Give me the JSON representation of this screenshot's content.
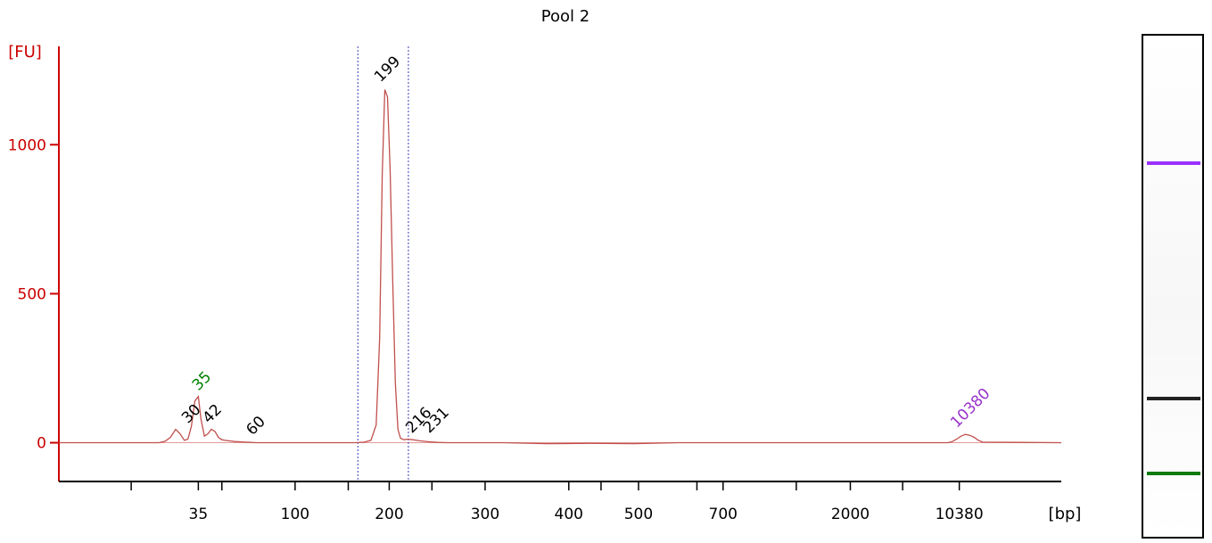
{
  "chart_data": {
    "type": "line",
    "title": "Pool 2",
    "ylabel": "[FU]",
    "xlabel": "[bp]",
    "ylim": [
      -130,
      1330
    ],
    "grid": false,
    "yticks": [
      0,
      500,
      1000
    ],
    "xticks": [
      "35",
      "100",
      "200",
      "300",
      "400",
      "500",
      "700",
      "2000",
      "10380"
    ],
    "x_tick_index": [
      1.0,
      2.11,
      3.19,
      4.29,
      5.25,
      6.05,
      7.02,
      8.48,
      9.73
    ],
    "x_minor_ticks": [
      0.23,
      1.27,
      2.72,
      3.68,
      5.62,
      6.72,
      7.86,
      9.08
    ],
    "xlim": [
      -0.6,
      10.9
    ],
    "series": [
      {
        "name": "",
        "color": "#c0504d",
        "x": [
          -0.6,
          0.55,
          0.62,
          0.68,
          0.74,
          0.79,
          0.84,
          0.88,
          0.92,
          0.96,
          1.0,
          1.03,
          1.07,
          1.11,
          1.15,
          1.19,
          1.23,
          1.27,
          1.31,
          1.36,
          1.42,
          1.48,
          1.54,
          1.6,
          1.66,
          1.72,
          2.4,
          2.8,
          2.9,
          2.98,
          3.04,
          3.08,
          3.11,
          3.14,
          3.17,
          3.2,
          3.23,
          3.26,
          3.29,
          3.32,
          3.36,
          3.4,
          3.46,
          3.55,
          3.65,
          3.75,
          3.85,
          4.05,
          4.5,
          5.0,
          5.5,
          6.0,
          6.5,
          8.5,
          9.55,
          9.6,
          9.65,
          9.7,
          9.75,
          9.8,
          9.85,
          9.9,
          9.95,
          10.0,
          10.9
        ],
        "values": [
          0,
          0,
          5,
          18,
          45,
          30,
          8,
          12,
          55,
          140,
          155,
          80,
          22,
          30,
          45,
          38,
          18,
          10,
          8,
          6,
          4,
          3,
          2,
          1,
          0,
          0,
          0,
          0,
          2,
          8,
          60,
          350,
          900,
          1185,
          1160,
          920,
          550,
          200,
          45,
          15,
          10,
          12,
          10,
          6,
          3,
          1,
          0,
          0,
          0,
          -3,
          -2,
          -3,
          0,
          0,
          0,
          0,
          4,
          12,
          22,
          28,
          25,
          18,
          8,
          2,
          0
        ]
      }
    ],
    "peak_labels": [
      {
        "text": "30",
        "x": 0.88,
        "y": 45,
        "color": "#000000"
      },
      {
        "text": "35",
        "x": 1.0,
        "y": 155,
        "color": "#008000"
      },
      {
        "text": "42",
        "x": 1.12,
        "y": 45,
        "color": "#000000"
      },
      {
        "text": "60",
        "x": 1.62,
        "y": 5,
        "color": "#000000"
      },
      {
        "text": "199",
        "x": 3.09,
        "y": 1190,
        "color": "#000000"
      },
      {
        "text": "216",
        "x": 3.45,
        "y": 12,
        "color": "#000000"
      },
      {
        "text": "231",
        "x": 3.65,
        "y": 12,
        "color": "#000000"
      },
      {
        "text": "10380",
        "x": 9.7,
        "y": 30,
        "color": "#9932cc"
      }
    ],
    "region_lines": [
      2.83,
      3.41
    ],
    "gel_bands": [
      {
        "position": 0.25,
        "color": "#9b30ff"
      },
      {
        "position": 0.72,
        "color": "#222222"
      },
      {
        "position": 0.87,
        "color": "#0a7a0a"
      }
    ]
  }
}
